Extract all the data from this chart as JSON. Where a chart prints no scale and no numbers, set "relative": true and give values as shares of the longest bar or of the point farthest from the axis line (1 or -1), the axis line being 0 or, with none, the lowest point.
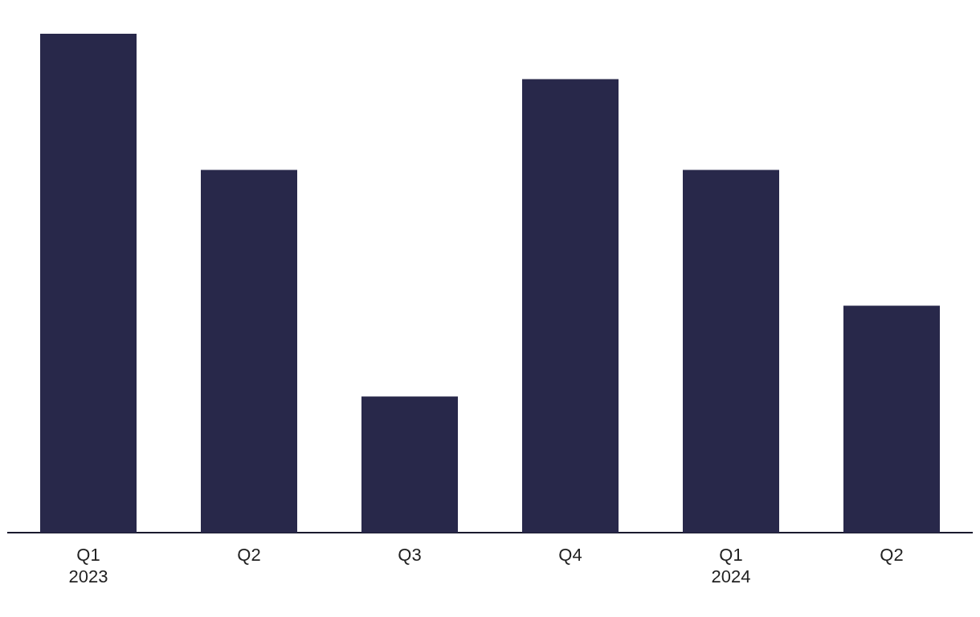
{
  "chart_data": {
    "type": "bar",
    "relative": true,
    "categories": [
      "Q1\n2023",
      "Q2",
      "Q3",
      "Q4",
      "Q1\n2024",
      "Q2"
    ],
    "values": [
      1,
      0.727,
      0.273,
      0.909,
      0.727,
      0.455
    ],
    "color": "#28284a",
    "grid": false,
    "legend": false
  }
}
